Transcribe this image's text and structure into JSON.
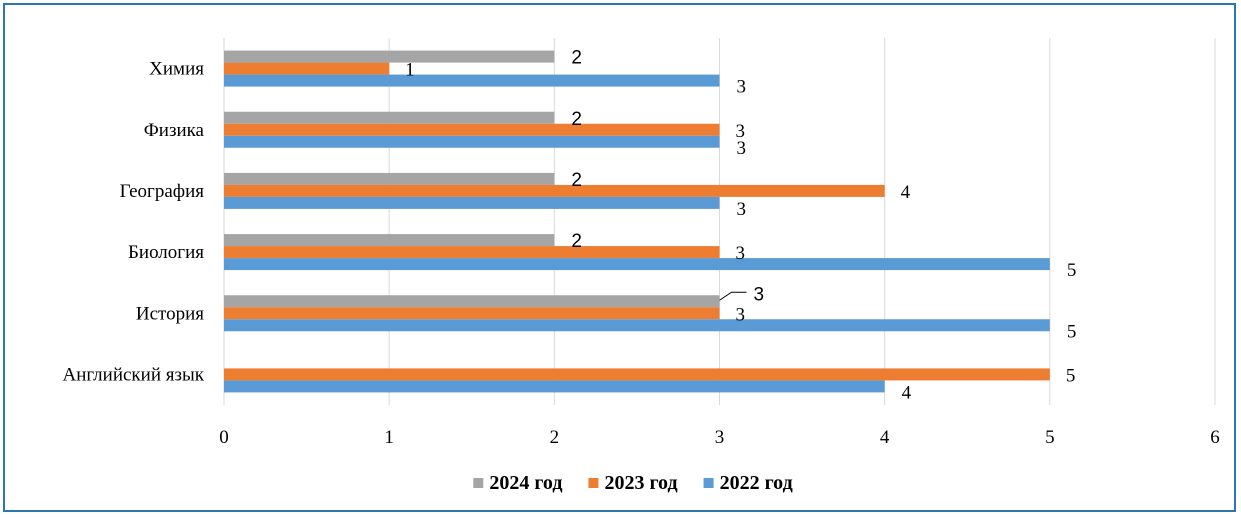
{
  "chart_data": {
    "type": "bar",
    "orientation": "horizontal",
    "categories": [
      "Химия",
      "Физика",
      "География",
      "Биология",
      "История",
      "Английский язык"
    ],
    "series": [
      {
        "name": "2024 год",
        "color": "#a5a5a5",
        "values": [
          2,
          2,
          2,
          2,
          3,
          null
        ]
      },
      {
        "name": "2023 год",
        "color": "#ed7d31",
        "values": [
          1,
          3,
          4,
          3,
          3,
          5
        ]
      },
      {
        "name": "2022 год",
        "color": "#5b9bd5",
        "values": [
          3,
          3,
          3,
          5,
          5,
          4
        ]
      }
    ],
    "data_labels": [
      [
        "2",
        "2",
        "2",
        "2",
        "3",
        ""
      ],
      [
        "1",
        "3",
        "4",
        "3",
        "3",
        "5"
      ],
      [
        "3",
        "3",
        "3",
        "5",
        "5",
        "4"
      ]
    ],
    "xlim": [
      0,
      6
    ],
    "x_ticks": [
      "0",
      "1",
      "2",
      "3",
      "4",
      "5",
      "6"
    ],
    "grid": true,
    "legend_position": "bottom",
    "title": "",
    "xlabel": "",
    "ylabel": ""
  }
}
